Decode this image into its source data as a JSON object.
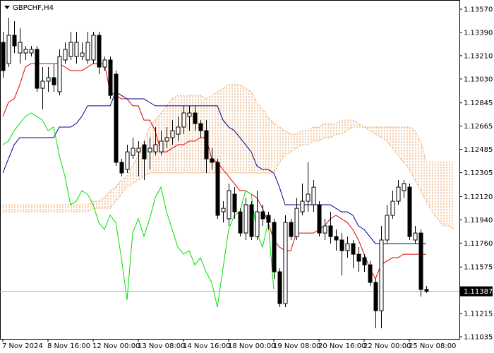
{
  "chart_data": {
    "type": "candlestick",
    "title": "GBPCHF,H4",
    "categories": [
      "7 Nov 2024",
      null,
      null,
      null,
      null,
      null,
      null,
      null,
      "8 Nov 16:00",
      null,
      null,
      null,
      null,
      null,
      null,
      null,
      "12 Nov 00:00",
      null,
      null,
      null,
      null,
      null,
      null,
      null,
      "13 Nov 08:00",
      null,
      null,
      null,
      null,
      null,
      null,
      null,
      "14 Nov 16:00",
      null,
      null,
      null,
      null,
      null,
      null,
      null,
      "18 Nov 00:00",
      null,
      null,
      null,
      null,
      null,
      null,
      null,
      "19 Nov 08:00",
      null,
      null,
      null,
      null,
      null,
      null,
      null,
      "20 Nov 16:00",
      null,
      null,
      null,
      null,
      null,
      null,
      null,
      "22 Nov 00:00",
      null,
      null,
      null,
      null,
      null,
      null,
      null,
      "25 Nov 08:00",
      null,
      null,
      null,
      null,
      null,
      null,
      null,
      null
    ],
    "open": [
      1.13313,
      1.13149,
      1.13368,
      1.13231,
      1.13231,
      1.13231,
      1.13259,
      1.12958,
      1.13013,
      1.1304,
      1.12931,
      1.13177,
      1.13204,
      1.13204,
      1.13204,
      1.13177,
      1.13177,
      1.13368,
      1.13122,
      1.13177,
      1.13067,
      1.12385,
      1.1233,
      1.12439,
      1.12466,
      1.12521,
      1.12466,
      1.12466,
      1.12466,
      1.12549,
      1.12576,
      1.12603,
      1.12658,
      1.1274,
      1.12767,
      1.12685,
      1.1263,
      1.12412,
      1.12385,
      1.12002,
      1.11948,
      1.12139,
      1.12002,
      1.11838,
      1.12057,
      1.11811,
      1.12002,
      1.11975,
      1.1192,
      1.11538,
      1.11292,
      1.1192,
      1.11811,
      1.12002,
      1.12084,
      1.12057,
      1.12057,
      1.11838,
      1.11893,
      1.11811,
      1.11784,
      1.11702,
      1.11756,
      1.11674,
      1.11647,
      1.11592,
      1.11456,
      1.11237,
      1.11784,
      1.11975,
      1.12084,
      1.12166,
      1.12193,
      1.11784,
      1.11838,
      1.11401,
      null,
      null,
      null,
      null,
      null
    ],
    "high": [
      1.13395,
      1.13504,
      1.13477,
      1.13422,
      1.13286,
      1.13286,
      1.13286,
      1.13122,
      1.13122,
      1.13149,
      1.13259,
      1.13313,
      1.13395,
      1.13395,
      1.13313,
      1.13395,
      1.13395,
      1.13395,
      1.13204,
      1.13204,
      1.13095,
      1.12412,
      1.12521,
      1.12576,
      1.12549,
      1.12549,
      1.12576,
      1.12658,
      1.1263,
      1.12658,
      1.12712,
      1.1274,
      1.12822,
      1.12822,
      1.12822,
      1.12712,
      1.12712,
      1.12494,
      1.12412,
      1.12084,
      1.12221,
      1.12193,
      1.12029,
      1.12111,
      1.12084,
      1.12166,
      1.12057,
      1.12002,
      1.11948,
      1.11565,
      1.11975,
      1.11948,
      1.12111,
      1.12221,
      1.12385,
      1.12248,
      1.12084,
      1.11948,
      1.12002,
      1.11865,
      1.11838,
      1.11811,
      1.11784,
      1.11729,
      1.11674,
      1.1162,
      1.11483,
      1.11893,
      1.12057,
      1.12166,
      1.12248,
      1.12248,
      1.12221,
      1.11893,
      1.11865,
      1.11428,
      null,
      null,
      null,
      null,
      null
    ],
    "low": [
      1.1304,
      1.13122,
      1.13231,
      1.13149,
      1.13177,
      1.13204,
      1.12931,
      1.12794,
      1.12931,
      1.12931,
      1.12903,
      1.13149,
      1.13177,
      1.13149,
      1.13177,
      1.13149,
      1.13149,
      1.13067,
      1.13095,
      1.12876,
      1.12357,
      1.12276,
      1.12303,
      1.12412,
      1.12276,
      1.12248,
      1.1233,
      1.12439,
      1.12439,
      1.12494,
      1.12521,
      1.12549,
      1.12603,
      1.1263,
      1.1263,
      1.12576,
      1.12303,
      1.1233,
      1.11948,
      1.1192,
      1.11893,
      1.11948,
      1.11811,
      1.11784,
      1.11784,
      1.11784,
      1.11893,
      1.11865,
      1.11483,
      1.11265,
      1.11265,
      1.11784,
      1.11784,
      1.11975,
      1.12002,
      1.12002,
      1.11811,
      1.11784,
      1.11756,
      1.11702,
      1.1151,
      1.11647,
      1.11565,
      1.11538,
      1.11538,
      1.11428,
      1.11101,
      1.11101,
      1.11756,
      1.11948,
      1.12057,
      1.12111,
      1.11784,
      1.11756,
      1.11347,
      1.11374,
      null,
      null,
      null,
      null,
      null
    ],
    "close": [
      1.13095,
      1.13368,
      1.13286,
      1.13313,
      1.13259,
      1.13259,
      1.12958,
      1.13013,
      1.1304,
      1.12985,
      1.13204,
      1.13259,
      1.13313,
      1.13313,
      1.13231,
      1.13313,
      1.13368,
      1.13122,
      1.13177,
      1.12903,
      1.12385,
      1.12303,
      1.12466,
      1.12494,
      1.12494,
      1.12412,
      1.12494,
      1.12521,
      1.12549,
      1.12576,
      1.1263,
      1.12658,
      1.12767,
      1.12767,
      1.12685,
      1.1263,
      1.12412,
      1.12385,
      1.11975,
      1.12029,
      1.12166,
      1.12002,
      1.11838,
      1.12057,
      1.11811,
      1.12002,
      1.11948,
      1.1192,
      1.11538,
      1.11292,
      1.1192,
      1.11811,
      1.12029,
      1.12084,
      1.12139,
      1.12193,
      1.11838,
      1.11893,
      1.11811,
      1.11784,
      1.11702,
      1.11756,
      1.11674,
      1.1162,
      1.11592,
      1.11456,
      1.11237,
      1.11784,
      1.11975,
      1.12084,
      1.12193,
      1.12221,
      1.11811,
      1.11838,
      1.11401,
      1.11387,
      null,
      null,
      null,
      null,
      null
    ],
    "up_color": "#ffffff",
    "down_color": "#000000",
    "lines": [
      {
        "color": "#e00000",
        "values": [
          1.1274,
          1.12849,
          1.12876,
          1.12985,
          1.13122,
          1.13149,
          1.13149,
          1.13149,
          1.13149,
          1.13149,
          1.13149,
          1.13122,
          1.13095,
          1.13095,
          1.13095,
          1.13122,
          1.13149,
          1.13149,
          1.13149,
          1.12931,
          1.12903,
          1.12876,
          1.12876,
          1.12822,
          1.12822,
          1.12712,
          1.12712,
          1.1263,
          1.12466,
          1.12466,
          1.12494,
          1.12521,
          1.12521,
          1.12549,
          1.12549,
          1.12576,
          1.12576,
          1.12412,
          1.12385,
          1.1233,
          1.12276,
          1.12221,
          1.12166,
          1.12166,
          1.12139,
          1.12111,
          1.12029,
          1.1192,
          1.11784,
          1.11729,
          1.11702,
          1.11702,
          1.11838,
          1.11838,
          1.11838,
          1.11838,
          1.11865,
          1.11893,
          1.11948,
          1.11975,
          1.11948,
          1.1192,
          1.11865,
          1.11784,
          1.11674,
          1.11565,
          1.11483,
          1.11592,
          1.1162,
          1.11647,
          1.11647,
          1.11674,
          1.11674,
          1.11674,
          1.11674,
          1.11674,
          null,
          null,
          null,
          null,
          null
        ]
      },
      {
        "color": "#00008b",
        "values": [
          1.12303,
          1.12412,
          1.12521,
          1.12576,
          1.12576,
          1.12576,
          1.12576,
          1.12576,
          1.12576,
          1.12576,
          1.12658,
          1.12658,
          1.12658,
          1.12685,
          1.1274,
          1.12822,
          1.12822,
          1.12822,
          1.12822,
          1.12822,
          1.12931,
          1.12903,
          1.12876,
          1.12876,
          1.12876,
          1.12876,
          1.12849,
          1.12822,
          1.12822,
          1.12822,
          1.12822,
          1.12822,
          1.12822,
          1.12822,
          1.12822,
          1.12822,
          1.12822,
          1.12822,
          1.12822,
          1.12712,
          1.12658,
          1.1263,
          1.12576,
          1.12521,
          1.12466,
          1.12357,
          1.1233,
          1.1233,
          1.12303,
          1.12193,
          1.12057,
          1.12057,
          1.12057,
          1.12057,
          1.12057,
          1.12057,
          1.12057,
          1.12057,
          1.12057,
          1.12029,
          1.12002,
          1.12002,
          1.11975,
          1.11893,
          1.11865,
          1.11811,
          1.11756,
          1.11756,
          1.11756,
          1.11756,
          1.11756,
          1.11756,
          1.11756,
          1.11756,
          1.11756,
          1.11756,
          null,
          null,
          null,
          null,
          null
        ]
      },
      {
        "color": "#00e000",
        "values": [
          1.12521,
          1.12549,
          1.1263,
          1.12685,
          1.1274,
          1.12767,
          1.1274,
          1.12712,
          1.1263,
          1.12658,
          1.12439,
          1.12276,
          1.12057,
          1.12084,
          1.12166,
          1.12139,
          1.12057,
          1.1192,
          1.11865,
          1.11975,
          1.1192,
          1.11647,
          1.11319,
          1.11838,
          1.11948,
          1.11811,
          1.11948,
          1.12111,
          1.12193,
          1.12002,
          1.11865,
          1.11729,
          1.11674,
          1.11702,
          1.11592,
          1.11647,
          1.11538,
          1.11456,
          1.11265,
          1.11565,
          1.11865,
          1.11975,
          1.12002,
          1.12166,
          1.12139,
          1.11838,
          1.11729,
          1.1192,
          1.11401,
          null,
          null,
          null,
          null,
          null,
          null,
          null,
          null,
          null,
          null,
          null,
          null,
          null,
          null,
          null,
          null,
          null,
          null,
          null,
          null,
          null,
          null,
          null,
          null,
          null,
          null,
          null,
          null,
          null,
          null,
          null,
          null
        ]
      }
    ],
    "cloud": {
      "color": "#e8a060",
      "span_a": [
        1.12057,
        1.12057,
        1.12057,
        1.12057,
        1.12057,
        1.12057,
        1.12057,
        1.12057,
        1.12057,
        1.12057,
        1.12057,
        1.12057,
        1.12057,
        1.12057,
        1.12057,
        1.12057,
        1.12084,
        1.12084,
        1.12111,
        1.12166,
        1.12193,
        1.12248,
        1.12276,
        1.12357,
        1.12439,
        1.12549,
        1.12658,
        1.12712,
        1.12767,
        1.12822,
        1.12876,
        1.12903,
        1.12903,
        1.12903,
        1.12903,
        1.12903,
        1.12876,
        1.12903,
        1.12931,
        1.12958,
        1.12985,
        1.12985,
        1.12985,
        1.12958,
        1.12931,
        1.12849,
        1.12794,
        1.1274,
        1.12685,
        1.12658,
        1.1263,
        1.12603,
        1.12603,
        1.1263,
        1.1263,
        1.12658,
        1.12658,
        1.12685,
        1.12685,
        1.12685,
        1.12712,
        1.12712,
        1.12712,
        1.12685,
        1.12658,
        1.1263,
        1.12603,
        1.12576,
        1.12549,
        1.12494,
        1.12439,
        1.12385,
        1.1233,
        1.12248,
        1.12166,
        1.12084,
        1.12002,
        1.11948,
        1.11893,
        1.11893,
        1.11865
      ],
      "span_b": [
        1.12002,
        1.12002,
        1.12002,
        1.12002,
        1.12002,
        1.12002,
        1.12002,
        1.12002,
        1.12002,
        1.12002,
        1.12002,
        1.12002,
        1.12002,
        1.12002,
        1.12002,
        1.12002,
        1.12029,
        1.12029,
        1.12029,
        1.12029,
        1.12084,
        1.12139,
        1.12193,
        1.12221,
        1.12248,
        1.12276,
        1.12303,
        1.12303,
        1.12303,
        1.12303,
        1.12303,
        1.12303,
        1.12303,
        1.12303,
        1.12303,
        1.12303,
        1.12303,
        1.12303,
        1.12303,
        1.12303,
        1.12303,
        1.12303,
        1.12303,
        1.12303,
        1.12303,
        1.12303,
        1.12303,
        1.12303,
        1.12303,
        1.12385,
        1.12439,
        1.12466,
        1.12494,
        1.12521,
        1.12521,
        1.12549,
        1.12549,
        1.12576,
        1.12576,
        1.12603,
        1.12603,
        1.1263,
        1.12658,
        1.12658,
        1.12658,
        1.12658,
        1.12658,
        1.12658,
        1.12658,
        1.12658,
        1.12658,
        1.12658,
        1.12658,
        1.1263,
        1.12549,
        1.12385,
        1.12385,
        1.12385,
        1.12385,
        1.12385,
        1.12385
      ]
    },
    "current_price": 1.11387,
    "ylim": [
      1.11019,
      1.13641
    ],
    "yticks": [
      {
        "value": 1.1357,
        "label": "1.13570"
      },
      {
        "value": 1.1339,
        "label": "1.13390"
      },
      {
        "value": 1.1321,
        "label": "1.13210"
      },
      {
        "value": 1.1303,
        "label": "1.13030"
      },
      1.12845,
      1.12665,
      1.12485,
      1.12305,
      {
        "value": 1.1212,
        "label": "1.12120"
      },
      {
        "value": 1.1194,
        "label": "1.11940"
      },
      {
        "value": 1.1176,
        "label": "1.11760"
      },
      1.11575,
      1.11215,
      1.11035
    ]
  }
}
